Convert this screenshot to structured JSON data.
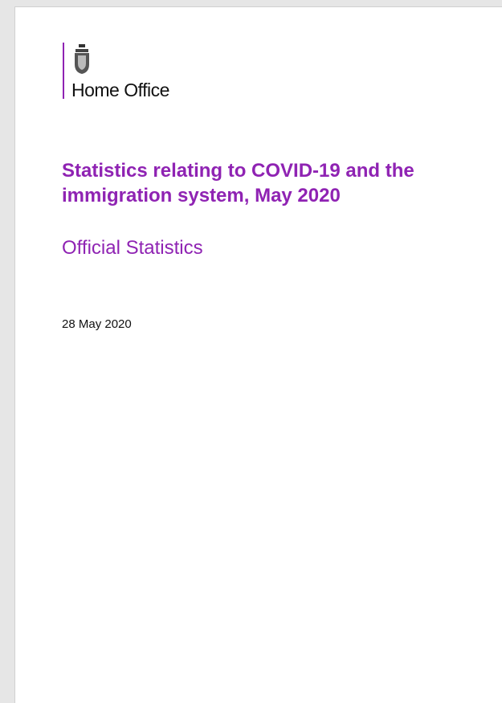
{
  "header": {
    "organisation": "Home Office"
  },
  "document": {
    "title_lines": [
      "Statistics relating to COVID-19 and the",
      "immigration system, May 2020"
    ],
    "subtitle": "Official Statistics",
    "date": "28 May 2020"
  }
}
